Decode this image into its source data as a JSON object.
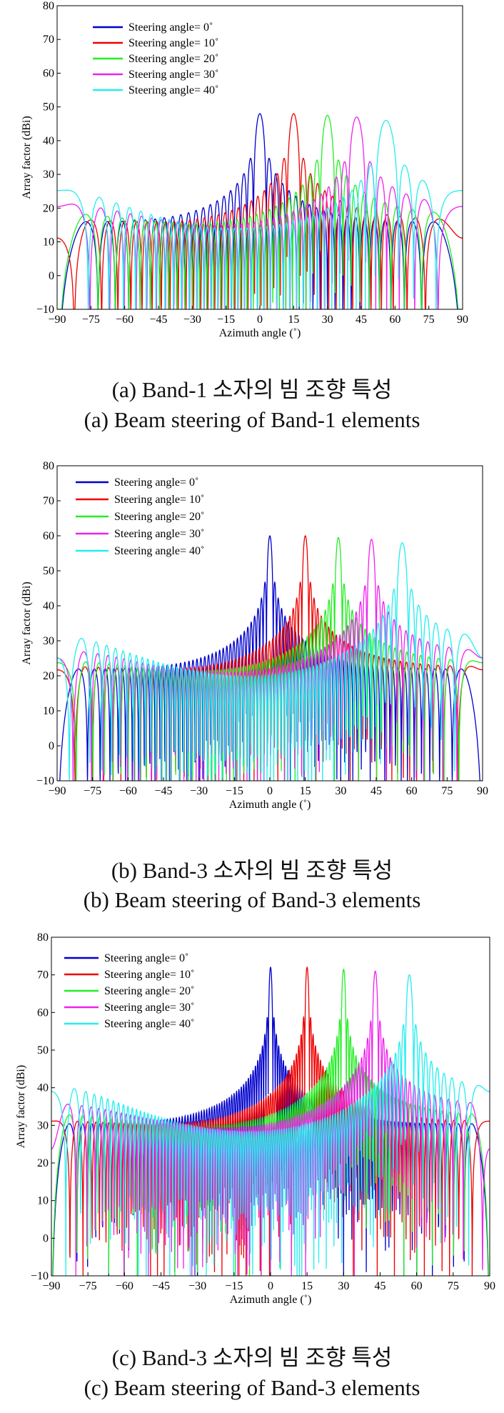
{
  "chart_data": [
    {
      "type": "line",
      "title": "",
      "xlabel": "Azimuth angle (˚)",
      "ylabel": "Array factor (dBi)",
      "xlim": [
        -90,
        90
      ],
      "ylim": [
        -10,
        80
      ],
      "xticks": [
        "−90",
        "−75",
        "−60",
        "−45",
        "−30",
        "−15",
        "0",
        "15",
        "30",
        "45",
        "60",
        "75",
        "90"
      ],
      "yticks": [
        "−10",
        "0",
        "10",
        "20",
        "30",
        "40",
        "50",
        "60",
        "70",
        "80"
      ],
      "legend_position": "top-left",
      "series": [
        {
          "name": "Steering angle= 0˚",
          "color": "#0000cc",
          "steer": 0,
          "peak": 48
        },
        {
          "name": "Steering angle= 10˚",
          "color": "#ee0000",
          "steer": 15,
          "peak": 48
        },
        {
          "name": "Steering angle= 20˚",
          "color": "#22ee22",
          "steer": 30,
          "peak": 47.5
        },
        {
          "name": "Steering angle= 30˚",
          "color": "#ee22ee",
          "steer": 43,
          "peak": 47
        },
        {
          "name": "Steering angle= 40˚",
          "color": "#22eeee",
          "steer": 56,
          "peak": 46
        }
      ],
      "caption_ko": "(a) Band-1 소자의 빔 조향 특성",
      "caption_en": "(a) Beam steering of Band-1 elements"
    },
    {
      "type": "line",
      "title": "",
      "xlabel": "Azimuth angle (˚)",
      "ylabel": "Array factor (dBi)",
      "xlim": [
        -90,
        90
      ],
      "ylim": [
        -10,
        80
      ],
      "xticks": [
        "−90",
        "−75",
        "−60",
        "−45",
        "−30",
        "−15",
        "0",
        "15",
        "30",
        "45",
        "60",
        "75",
        "90"
      ],
      "yticks": [
        "−10",
        "0",
        "10",
        "20",
        "30",
        "40",
        "50",
        "60",
        "70",
        "80"
      ],
      "legend_position": "top-left",
      "series": [
        {
          "name": "Steering angle= 0˚",
          "color": "#0000cc",
          "steer": 0,
          "peak": 60
        },
        {
          "name": "Steering angle= 10˚",
          "color": "#ee0000",
          "steer": 15,
          "peak": 60
        },
        {
          "name": "Steering angle= 20˚",
          "color": "#22ee22",
          "steer": 29,
          "peak": 59.5
        },
        {
          "name": "Steering angle= 30˚",
          "color": "#ee22ee",
          "steer": 43,
          "peak": 59
        },
        {
          "name": "Steering angle= 40˚",
          "color": "#22eeee",
          "steer": 56,
          "peak": 58
        }
      ],
      "caption_ko": "(b) Band-3 소자의 빔 조향 특성",
      "caption_en": "(b) Beam steering of Band-3 elements"
    },
    {
      "type": "line",
      "title": "",
      "xlabel": "Azimuth angle (˚)",
      "ylabel": "Array factor (dBi)",
      "xlim": [
        -90,
        90
      ],
      "ylim": [
        -10,
        80
      ],
      "xticks": [
        "−90",
        "−75",
        "−60",
        "−45",
        "−30",
        "−15",
        "0",
        "15",
        "30",
        "45",
        "60",
        "75",
        "90"
      ],
      "yticks": [
        "−10",
        "0",
        "10",
        "20",
        "30",
        "40",
        "50",
        "60",
        "70",
        "80"
      ],
      "legend_position": "top-left",
      "series": [
        {
          "name": "Steering angle= 0˚",
          "color": "#0000cc",
          "steer": 0,
          "peak": 72
        },
        {
          "name": "Steering angle= 10˚",
          "color": "#ee0000",
          "steer": 15,
          "peak": 72
        },
        {
          "name": "Steering angle= 20˚",
          "color": "#22ee22",
          "steer": 30,
          "peak": 71.5
        },
        {
          "name": "Steering angle= 30˚",
          "color": "#ee22ee",
          "steer": 43,
          "peak": 71
        },
        {
          "name": "Steering angle= 40˚",
          "color": "#22eeee",
          "steer": 57,
          "peak": 70
        }
      ],
      "caption_ko": "(c) Band-3 소자의 빔 조향 특성",
      "caption_en": "(c) Beam steering of Band-3 elements"
    }
  ]
}
